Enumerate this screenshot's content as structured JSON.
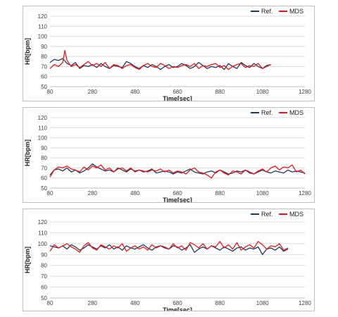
{
  "chart_data": [
    {
      "type": "line",
      "xlabel": "Time[sec]",
      "ylabel": "HR[bpm]",
      "xlim": [
        80,
        1280
      ],
      "ylim": [
        50,
        120
      ],
      "xticks": [
        80,
        280,
        480,
        680,
        880,
        1080,
        1280
      ],
      "yticks": [
        50,
        60,
        70,
        80,
        90,
        100,
        110,
        120
      ],
      "grid": true,
      "legend": "top-right",
      "series": [
        {
          "name": "Ref.",
          "color": "#1f3864",
          "x": [
            80,
            100,
            120,
            140,
            160,
            180,
            200,
            220,
            240,
            260,
            280,
            300,
            320,
            340,
            360,
            380,
            400,
            420,
            440,
            460,
            480,
            500,
            520,
            540,
            560,
            580,
            600,
            620,
            640,
            660,
            680,
            700,
            720,
            740,
            760,
            780,
            800,
            820,
            840,
            860,
            880,
            900,
            920,
            940,
            960,
            980,
            1000,
            1020,
            1040,
            1060,
            1080,
            1100,
            1120
          ],
          "y": [
            74,
            77,
            76,
            78,
            73,
            71,
            74,
            68,
            71,
            70,
            72,
            69,
            73,
            70,
            68,
            71,
            70,
            69,
            75,
            73,
            70,
            68,
            71,
            69,
            72,
            70,
            67,
            70,
            72,
            69,
            70,
            73,
            71,
            68,
            70,
            74,
            71,
            68,
            70,
            69,
            71,
            67,
            73,
            70,
            68,
            74,
            71,
            69,
            73,
            70,
            68,
            71,
            72
          ]
        },
        {
          "name": "MDS",
          "color": "#e8191c",
          "x": [
            80,
            100,
            120,
            140,
            150,
            160,
            180,
            200,
            220,
            240,
            260,
            280,
            300,
            320,
            340,
            360,
            380,
            400,
            420,
            440,
            460,
            480,
            500,
            520,
            540,
            560,
            580,
            600,
            620,
            640,
            660,
            680,
            700,
            720,
            740,
            760,
            780,
            800,
            820,
            840,
            860,
            880,
            900,
            920,
            940,
            960,
            980,
            1000,
            1020,
            1040,
            1060,
            1080,
            1100,
            1120
          ],
          "y": [
            68,
            72,
            70,
            74,
            86,
            76,
            70,
            72,
            69,
            72,
            75,
            71,
            73,
            70,
            74,
            68,
            72,
            71,
            68,
            71,
            72,
            69,
            67,
            71,
            73,
            70,
            69,
            73,
            71,
            68,
            70,
            69,
            71,
            72,
            70,
            73,
            68,
            71,
            70,
            72,
            73,
            69,
            71,
            67,
            70,
            72,
            73,
            69,
            71,
            70,
            73,
            68,
            70,
            72
          ]
        }
      ]
    },
    {
      "type": "line",
      "xlabel": "Time[sec]",
      "ylabel": "HR[bpm]",
      "xlim": [
        80,
        1280
      ],
      "ylim": [
        50,
        120
      ],
      "xticks": [
        80,
        280,
        480,
        680,
        880,
        1080,
        1280
      ],
      "yticks": [
        50,
        60,
        70,
        80,
        90,
        100,
        110,
        120
      ],
      "grid": true,
      "legend": "top-right",
      "series": [
        {
          "name": "Ref.",
          "color": "#1f3864",
          "x": [
            80,
            100,
            120,
            140,
            160,
            180,
            200,
            220,
            240,
            260,
            280,
            300,
            320,
            340,
            360,
            380,
            400,
            420,
            440,
            460,
            480,
            500,
            520,
            540,
            560,
            580,
            600,
            620,
            640,
            660,
            680,
            700,
            720,
            740,
            760,
            780,
            800,
            820,
            840,
            860,
            880,
            900,
            920,
            940,
            960,
            980,
            1000,
            1020,
            1040,
            1060,
            1080,
            1100,
            1120,
            1140,
            1160,
            1180,
            1200,
            1220,
            1240,
            1260,
            1280
          ],
          "y": [
            63,
            68,
            69,
            67,
            70,
            66,
            68,
            65,
            67,
            70,
            74,
            71,
            69,
            67,
            68,
            66,
            70,
            68,
            66,
            69,
            67,
            68,
            66,
            67,
            69,
            65,
            66,
            67,
            66,
            64,
            66,
            65,
            67,
            69,
            66,
            65,
            64,
            66,
            67,
            65,
            68,
            66,
            64,
            65,
            67,
            66,
            68,
            65,
            64,
            66,
            68,
            66,
            65,
            67,
            66,
            65,
            68,
            66,
            67,
            66,
            65
          ]
        },
        {
          "name": "MDS",
          "color": "#e8191c",
          "x": [
            80,
            100,
            120,
            140,
            160,
            180,
            200,
            220,
            240,
            260,
            280,
            300,
            320,
            340,
            360,
            380,
            400,
            420,
            440,
            460,
            480,
            500,
            520,
            540,
            560,
            580,
            600,
            620,
            640,
            660,
            680,
            700,
            720,
            740,
            760,
            780,
            800,
            820,
            840,
            860,
            880,
            900,
            920,
            940,
            960,
            980,
            1000,
            1020,
            1040,
            1060,
            1080,
            1100,
            1120,
            1140,
            1160,
            1180,
            1200,
            1220,
            1240,
            1260,
            1280
          ],
          "y": [
            61,
            68,
            71,
            70,
            72,
            69,
            68,
            66,
            71,
            68,
            72,
            70,
            73,
            68,
            70,
            66,
            69,
            70,
            67,
            70,
            66,
            68,
            67,
            66,
            68,
            67,
            69,
            66,
            68,
            65,
            67,
            66,
            64,
            68,
            70,
            66,
            65,
            63,
            60,
            66,
            68,
            65,
            63,
            67,
            66,
            64,
            68,
            66,
            64,
            67,
            69,
            66,
            70,
            72,
            68,
            71,
            70,
            73,
            66,
            68,
            64
          ]
        }
      ]
    },
    {
      "type": "line",
      "xlabel": "Time[sec]",
      "ylabel": "HR[bpm]",
      "xlim": [
        80,
        1280
      ],
      "ylim": [
        50,
        120
      ],
      "xticks": [
        80,
        280,
        480,
        680,
        880,
        1080,
        1280
      ],
      "yticks": [
        50,
        60,
        70,
        80,
        90,
        100,
        110,
        120
      ],
      "grid": true,
      "legend": "top-right",
      "series": [
        {
          "name": "Ref.",
          "color": "#1f3864",
          "x": [
            80,
            100,
            120,
            140,
            160,
            180,
            200,
            220,
            240,
            260,
            280,
            300,
            320,
            340,
            360,
            380,
            400,
            420,
            440,
            460,
            480,
            500,
            520,
            540,
            560,
            580,
            600,
            620,
            640,
            660,
            680,
            700,
            720,
            740,
            760,
            780,
            800,
            820,
            840,
            860,
            880,
            900,
            920,
            940,
            960,
            980,
            1000,
            1020,
            1040,
            1060,
            1080,
            1100,
            1120,
            1140,
            1160,
            1180,
            1200
          ],
          "y": [
            98,
            97,
            96,
            98,
            95,
            99,
            97,
            94,
            96,
            99,
            97,
            95,
            98,
            96,
            99,
            95,
            97,
            94,
            98,
            96,
            95,
            97,
            99,
            96,
            94,
            97,
            98,
            96,
            95,
            98,
            97,
            94,
            96,
            99,
            92,
            95,
            97,
            95,
            98,
            96,
            94,
            97,
            95,
            93,
            96,
            97,
            94,
            96,
            95,
            97,
            90,
            95,
            96,
            94,
            97,
            93,
            95
          ]
        },
        {
          "name": "MDS",
          "color": "#e8191c",
          "x": [
            80,
            100,
            120,
            140,
            160,
            180,
            200,
            220,
            240,
            260,
            280,
            300,
            320,
            340,
            360,
            380,
            400,
            420,
            440,
            460,
            480,
            500,
            520,
            540,
            560,
            580,
            600,
            620,
            640,
            660,
            680,
            700,
            720,
            740,
            760,
            780,
            800,
            820,
            840,
            860,
            880,
            900,
            920,
            940,
            960,
            980,
            1000,
            1020,
            1040,
            1060,
            1080,
            1100,
            1120,
            1140,
            1160,
            1180,
            1200
          ],
          "y": [
            93,
            99,
            96,
            98,
            100,
            97,
            95,
            92,
            98,
            101,
            96,
            94,
            99,
            97,
            95,
            98,
            96,
            100,
            93,
            96,
            98,
            95,
            97,
            94,
            99,
            96,
            98,
            97,
            95,
            100,
            96,
            98,
            94,
            101,
            99,
            96,
            100,
            95,
            98,
            97,
            102,
            96,
            99,
            95,
            101,
            94,
            97,
            99,
            96,
            102,
            99,
            95,
            98,
            97,
            100,
            94,
            96
          ]
        }
      ]
    }
  ]
}
